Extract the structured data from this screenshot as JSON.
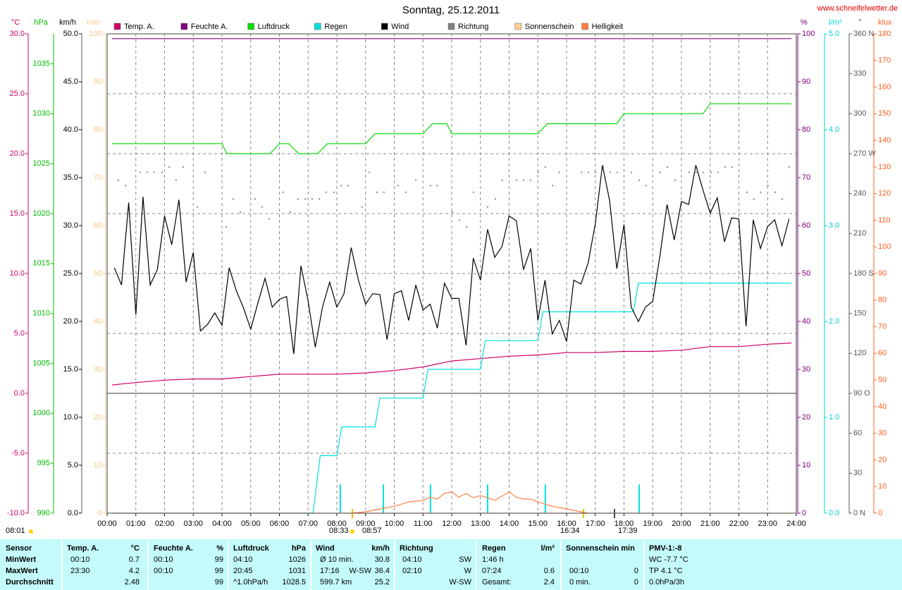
{
  "chart_data": {
    "type": "line",
    "title": "Sonntag, 25.12.2011",
    "source": "www.schneifelwetter.de",
    "xlim": [
      0,
      24
    ],
    "xticks": [
      {
        "value": 0,
        "label": "00:00"
      },
      {
        "value": 1,
        "label": "01:00"
      },
      {
        "value": 2,
        "label": "02:00"
      },
      {
        "value": 3,
        "label": "03:00"
      },
      {
        "value": 4,
        "label": "04:00"
      },
      {
        "value": 5,
        "label": "05:00"
      },
      {
        "value": 6,
        "label": "06:00"
      },
      {
        "value": 7,
        "label": "07:00"
      },
      {
        "value": 8,
        "label": "08:00"
      },
      {
        "value": 9,
        "label": "09:00"
      },
      {
        "value": 10,
        "label": "10:00"
      },
      {
        "value": 11,
        "label": "11:00"
      },
      {
        "value": 12,
        "label": "12:00"
      },
      {
        "value": 13,
        "label": "13:00"
      },
      {
        "value": 14,
        "label": "14:00"
      },
      {
        "value": 15,
        "label": "15:00"
      },
      {
        "value": 16,
        "label": "16:00"
      },
      {
        "value": 17,
        "label": "17:00"
      },
      {
        "value": 18,
        "label": "18:00"
      },
      {
        "value": 19,
        "label": "19:00"
      },
      {
        "value": 20,
        "label": "20:00"
      },
      {
        "value": 21,
        "label": "21:00"
      },
      {
        "value": 22,
        "label": "22:00"
      },
      {
        "value": 23,
        "label": "23:00"
      },
      {
        "value": 24,
        "label": "24:00"
      }
    ],
    "grid": true,
    "y_axes": [
      {
        "title": "°C",
        "side": "left",
        "color": "#cc0066",
        "ylim": [
          -10,
          30
        ],
        "yticks": [
          {
            "value": -10,
            "label": "-10.0"
          },
          {
            "value": -5,
            "label": "-5.0"
          },
          {
            "value": 0,
            "label": "0.0"
          },
          {
            "value": 5,
            "label": "5.0"
          },
          {
            "value": 10,
            "label": "10.0"
          },
          {
            "value": 15,
            "label": "15.0"
          },
          {
            "value": 20,
            "label": "20.0"
          },
          {
            "value": 25,
            "label": "25.0"
          },
          {
            "value": 30,
            "label": "30.0"
          }
        ]
      },
      {
        "title": "hPa",
        "side": "left",
        "color": "#00bb00",
        "ylim": [
          990,
          1038
        ],
        "yticks": [
          990,
          995,
          1000,
          1005,
          1010,
          1015,
          1020,
          1025,
          1030,
          1035
        ]
      },
      {
        "title": "km/h",
        "side": "left",
        "color": "#000000",
        "ylim": [
          0,
          50
        ],
        "yticks": [
          {
            "value": 0,
            "label": "0.0"
          },
          {
            "value": 5,
            "label": "5.0"
          },
          {
            "value": 10,
            "label": "10.0"
          },
          {
            "value": 15,
            "label": "15.0"
          },
          {
            "value": 20,
            "label": "20.0"
          },
          {
            "value": 25,
            "label": "25.0"
          },
          {
            "value": 30,
            "label": "30.0"
          },
          {
            "value": 35,
            "label": "35.0"
          },
          {
            "value": 40,
            "label": "40.0"
          },
          {
            "value": 45,
            "label": "45.0"
          },
          {
            "value": 50,
            "label": "50.0"
          }
        ]
      },
      {
        "title": "min",
        "side": "left",
        "color": "#f5c88c",
        "ylim": [
          0,
          100
        ],
        "yticks": [
          0,
          10,
          20,
          30,
          40,
          50,
          60,
          70,
          80,
          90,
          100
        ]
      },
      {
        "title": "%",
        "side": "right",
        "color": "#800080",
        "ylim": [
          0,
          100
        ],
        "yticks": [
          0,
          10,
          20,
          30,
          40,
          50,
          60,
          70,
          80,
          90,
          100
        ]
      },
      {
        "title": "l/m²",
        "side": "right",
        "color": "#00d0d0",
        "ylim": [
          0,
          5
        ],
        "yticks": [
          {
            "value": 0,
            "label": "0.0"
          },
          {
            "value": 1,
            "label": "1.0"
          },
          {
            "value": 2,
            "label": "2.0"
          },
          {
            "value": 3,
            "label": "3.0"
          },
          {
            "value": 4,
            "label": "4.0"
          },
          {
            "value": 5,
            "label": "5.0"
          }
        ]
      },
      {
        "title": "°",
        "side": "right",
        "color": "#555555",
        "ylim": [
          0,
          360
        ],
        "yticks": [
          {
            "value": 0,
            "label": "0 N"
          },
          30,
          60,
          {
            "value": 90,
            "label": "90 O"
          },
          120,
          150,
          {
            "value": 180,
            "label": "180 S"
          },
          210,
          240,
          {
            "value": 270,
            "label": "270 W"
          },
          300,
          330,
          {
            "value": 360,
            "label": "360 N"
          }
        ]
      },
      {
        "title": "klux",
        "side": "right",
        "color": "#ff6020",
        "ylim": [
          0,
          180
        ],
        "yticks": [
          0,
          10,
          20,
          30,
          40,
          50,
          60,
          70,
          80,
          90,
          100,
          110,
          120,
          130,
          140,
          150,
          160,
          170,
          180
        ]
      }
    ],
    "series": [
      {
        "name": "Temp. A.",
        "color": "#cc0066",
        "axis": 0,
        "x": [
          0.17,
          1,
          2,
          3,
          4,
          5,
          6,
          7,
          8,
          9,
          10,
          11,
          12,
          13,
          14,
          15,
          16,
          17,
          18,
          19,
          20,
          21,
          22,
          23,
          23.83
        ],
        "values": [
          0.7,
          0.9,
          1.1,
          1.2,
          1.2,
          1.4,
          1.6,
          1.6,
          1.6,
          1.7,
          1.9,
          2.2,
          2.7,
          2.9,
          3.1,
          3.2,
          3.4,
          3.4,
          3.5,
          3.5,
          3.6,
          3.9,
          3.9,
          4.1,
          4.2
        ]
      },
      {
        "name": "Feuchte A.",
        "color": "#800080",
        "axis": 4,
        "x": [
          0.17,
          23.83
        ],
        "values": [
          99,
          99
        ]
      },
      {
        "name": "Luftdruck",
        "color": "#00dd00",
        "axis": 1,
        "x": [
          0.17,
          4.0,
          4.17,
          5.67,
          6.0,
          6.33,
          6.67,
          7.33,
          7.67,
          9.0,
          9.33,
          11.0,
          11.33,
          11.83,
          12.0,
          15.0,
          15.33,
          17.75,
          18.0,
          20.75,
          21.0,
          23.83
        ],
        "values": [
          1027,
          1027,
          1026,
          1026,
          1027,
          1027,
          1026,
          1026,
          1027,
          1027,
          1028,
          1028,
          1029,
          1029,
          1028,
          1028,
          1029,
          1029,
          1030,
          1030,
          1031,
          1031
        ]
      },
      {
        "name": "Regen",
        "color": "#00e0e0",
        "axis": 5,
        "x": [
          0.17,
          7.17,
          7.42,
          8.0,
          8.17,
          9.33,
          9.5,
          11.0,
          11.17,
          13.0,
          13.17,
          15.0,
          15.17,
          18.33,
          18.5,
          23.83
        ],
        "values": [
          0,
          0,
          0.6,
          0.6,
          0.9,
          0.9,
          1.2,
          1.2,
          1.5,
          1.5,
          1.8,
          1.8,
          2.1,
          2.1,
          2.4,
          2.4
        ]
      },
      {
        "name": "Wind",
        "color": "#000000",
        "axis": 2,
        "x": [
          0.25,
          0.5,
          0.75,
          1,
          1.25,
          1.5,
          1.75,
          2,
          2.25,
          2.5,
          2.75,
          3,
          3.25,
          3.5,
          3.75,
          4,
          4.25,
          4.5,
          4.75,
          5,
          5.25,
          5.5,
          5.75,
          6,
          6.25,
          6.5,
          6.75,
          7,
          7.25,
          7.5,
          7.75,
          8,
          8.25,
          8.5,
          8.75,
          9,
          9.25,
          9.5,
          9.75,
          10,
          10.25,
          10.5,
          10.75,
          11,
          11.25,
          11.5,
          11.75,
          12,
          12.25,
          12.5,
          12.75,
          13,
          13.25,
          13.5,
          13.75,
          14,
          14.25,
          14.5,
          14.75,
          15,
          15.25,
          15.5,
          15.75,
          16,
          16.25,
          16.5,
          16.75,
          17,
          17.25,
          17.5,
          17.75,
          18,
          18.25,
          18.5,
          18.75,
          19,
          19.25,
          19.5,
          19.75,
          20,
          20.25,
          20.5,
          20.75,
          21,
          21.25,
          21.5,
          21.75,
          22,
          22.25,
          22.5,
          22.75,
          23,
          23.25,
          23.5,
          23.75
        ],
        "values": [
          25.6,
          23.8,
          32.4,
          20.7,
          33.0,
          23.8,
          25.4,
          31.0,
          28.0,
          32.7,
          24.1,
          27.2,
          19.0,
          19.7,
          20.9,
          19.6,
          25.6,
          23.2,
          21.4,
          19.2,
          21.9,
          24.5,
          21.5,
          22.3,
          22.6,
          16.6,
          25.8,
          22.1,
          17.3,
          21.5,
          24.1,
          21.5,
          22.9,
          27.7,
          24.3,
          21.8,
          22.9,
          22.8,
          18.1,
          22.9,
          23.2,
          20.1,
          23.8,
          21.2,
          21.8,
          19.3,
          24.0,
          22.4,
          22.4,
          17.5,
          26.6,
          24.3,
          29.6,
          26.7,
          27.8,
          31.0,
          30.5,
          25.4,
          27.6,
          20.1,
          24.3,
          18.7,
          20.1,
          17.9,
          24.3,
          23.9,
          26.1,
          30.2,
          36.3,
          32.6,
          25.5,
          30.1,
          21.5,
          20.0,
          21.5,
          22.1,
          26.8,
          32.2,
          28.5,
          32.5,
          32.2,
          36.3,
          33.7,
          31.3,
          32.9,
          28.3,
          30.8,
          30.7,
          19.5,
          30.6,
          27.6,
          29.9,
          30.6,
          27.9,
          30.7
        ]
      },
      {
        "name": "Richtung",
        "color": "#808080",
        "axis": 6,
        "style": "dots",
        "x": [
          0.39,
          0.64,
          1.15,
          1.4,
          1.64,
          1.91,
          2.16,
          2.4,
          2.65,
          3.14,
          3.41,
          4.15,
          4.39,
          4.64,
          5.15,
          5.4,
          5.64,
          6.13,
          6.38,
          6.65,
          6.9,
          7.14,
          7.39,
          7.63,
          7.9,
          8.15,
          8.39,
          8.88,
          9.13,
          9.4,
          9.64,
          10.13,
          10.4,
          10.75,
          11.26,
          11.5,
          12.02,
          12.27,
          12.52,
          12.76,
          13.25,
          13.52,
          13.76,
          14.26,
          14.5,
          14.75,
          15.02,
          15.26,
          15.51,
          15.75,
          16.52,
          16.76,
          17.01,
          17.28,
          17.52,
          17.76,
          18.26,
          18.53,
          18.77,
          19.26,
          19.51,
          19.78,
          20.27,
          20.51,
          20.76,
          21.03,
          21.27,
          21.52,
          21.76,
          22.28,
          22.52,
          22.76,
          23.01,
          23.26,
          23.51,
          23.75
        ],
        "values": [
          250,
          246,
          256,
          256,
          256,
          256,
          260,
          250,
          260,
          230,
          256,
          215,
          236,
          226,
          236,
          230,
          221,
          241,
          226,
          236,
          236,
          236,
          236,
          241,
          241,
          246,
          246,
          230,
          256,
          241,
          241,
          246,
          241,
          250,
          246,
          246,
          226,
          220,
          215,
          241,
          230,
          236,
          250,
          250,
          250,
          250,
          256,
          260,
          246,
          256,
          256,
          256,
          256,
          260,
          256,
          256,
          256,
          250,
          246,
          256,
          260,
          250,
          256,
          256,
          256,
          256,
          256,
          260,
          260,
          241,
          236,
          241,
          246,
          241,
          236,
          260
        ]
      },
      {
        "name": "Sonnenschein",
        "color": "#ffd090",
        "axis": 3,
        "x": [
          0.17,
          23.83
        ],
        "values": [
          0,
          0
        ]
      },
      {
        "name": "Helligkeit",
        "color": "#ff7f40",
        "axis": 7,
        "x": [
          8.5,
          9,
          9.5,
          10,
          10.5,
          11,
          11.25,
          11.5,
          11.75,
          12,
          12.25,
          12.5,
          12.75,
          13,
          13.25,
          13.5,
          14,
          14.25,
          14.5,
          14.75,
          15,
          15.5,
          16,
          16.5,
          16.75
        ],
        "values": [
          0,
          0.5,
          1.6,
          2.6,
          4.2,
          4.8,
          6,
          5.3,
          7.4,
          8,
          6,
          7.4,
          5.8,
          6.6,
          5.8,
          4.8,
          8,
          6,
          5.3,
          5.3,
          4.2,
          2.6,
          1.6,
          0.5,
          0
        ]
      }
    ],
    "rain_bars": {
      "color": "#00e0e0",
      "axis": 5,
      "x": [
        8.12,
        9.62,
        11.26,
        13.25,
        15.26,
        18.53
      ],
      "values": [
        0.3,
        0.3,
        0.3,
        0.3,
        0.3,
        0.3
      ]
    },
    "annotations": [
      "08:01",
      "08:33",
      "08:57",
      "16:34",
      "17:39"
    ]
  },
  "table": {
    "columns": [
      {
        "header": [
          "Sensor"
        ],
        "rows": [
          [
            "MinWert"
          ],
          [
            "MaxWert"
          ],
          [
            "Durchschnitt"
          ]
        ]
      },
      {
        "header": [
          "Temp. A.",
          "°C"
        ],
        "rows": [
          [
            "00:10",
            "0.7"
          ],
          [
            "23:30",
            "4.2"
          ],
          [
            null,
            "2.48"
          ]
        ]
      },
      {
        "header": [
          "Feuchte A.",
          "%"
        ],
        "rows": [
          [
            "00:10",
            "99"
          ],
          [
            "00:10",
            "99"
          ],
          [
            null,
            "99"
          ]
        ]
      },
      {
        "header": [
          "Luftdruck",
          "hPa"
        ],
        "rows": [
          [
            "04:10",
            "1026"
          ],
          [
            "20:45",
            "1031"
          ],
          [
            "^1.0hPa/h",
            "1028.5"
          ]
        ]
      },
      {
        "header": [
          "Wind",
          "km/h"
        ],
        "rows": [
          [
            "Ø 10 min.",
            null,
            "30.8"
          ],
          [
            "17:16",
            "W-SW",
            "36.4"
          ],
          [
            "599.7 km",
            null,
            "25.2"
          ]
        ]
      },
      {
        "header": [
          "Richtung"
        ],
        "rows": [
          [
            "04:10",
            "SW"
          ],
          [
            "02:10",
            "W"
          ],
          [
            null,
            "W-SW"
          ]
        ]
      },
      {
        "header": [
          "Regen",
          "l/m²"
        ],
        "rows": [
          [
            "1:46 h",
            null
          ],
          [
            "07:24",
            "0.6"
          ],
          [
            "Gesamt:",
            "2.4"
          ]
        ]
      },
      {
        "header": [
          "Sonnenschein min"
        ],
        "rows": [
          [
            null,
            null
          ],
          [
            "00:10",
            "0"
          ],
          [
            "0 min.",
            "0"
          ]
        ]
      },
      {
        "header": [
          "PMV-1:-8"
        ],
        "rows": [
          [
            "WC -7.7 °C"
          ],
          [
            "TP 4.1 °C"
          ],
          [
            "0.0hPa/3h"
          ]
        ]
      }
    ]
  }
}
